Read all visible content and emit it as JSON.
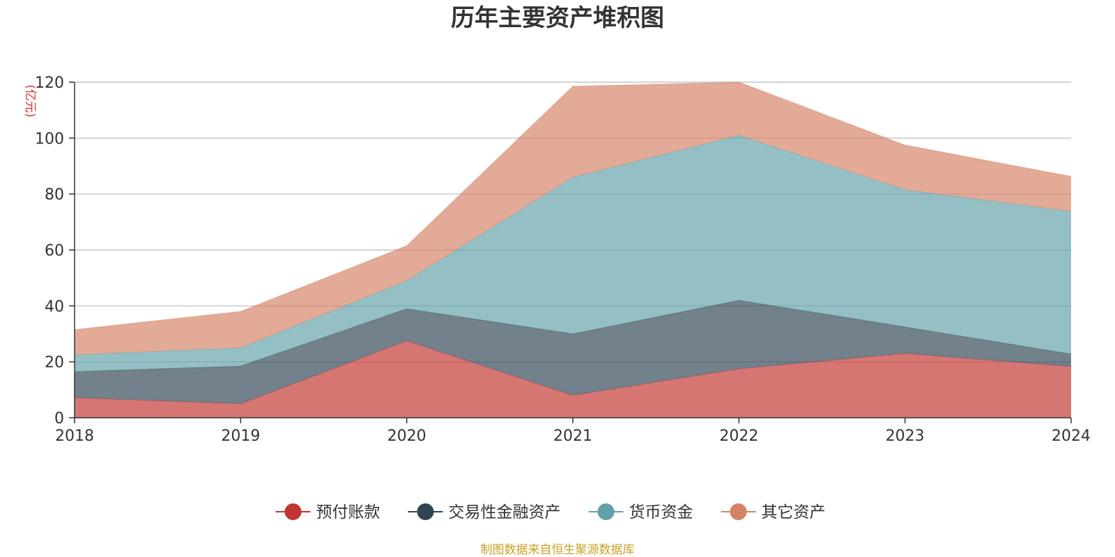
{
  "chart_data": {
    "type": "area",
    "stacked": true,
    "title": "历年主要资产堆积图",
    "unit_label": "(亿元)",
    "categories": [
      "2018",
      "2019",
      "2020",
      "2021",
      "2022",
      "2023",
      "2024"
    ],
    "ylim": [
      0,
      120
    ],
    "yticks": [
      "0",
      "20",
      "40",
      "60",
      "80",
      "100",
      "120"
    ],
    "grid": true,
    "legend_position": "bottom",
    "series": [
      {
        "name": "预付账款",
        "color": "#c23531",
        "values": [
          7.2,
          5.0,
          27.5,
          8.0,
          17.5,
          23.0,
          18.3
        ]
      },
      {
        "name": "交易性金融资产",
        "color": "#2f4554",
        "values": [
          9.3,
          13.5,
          11.5,
          22.0,
          24.5,
          9.5,
          4.5
        ]
      },
      {
        "name": "货币资金",
        "color": "#61a0a8",
        "values": [
          6.0,
          6.5,
          10.0,
          56.0,
          59.0,
          49.0,
          51.0
        ]
      },
      {
        "name": "其它资产",
        "color": "#d48265",
        "values": [
          9.0,
          13.0,
          12.5,
          32.5,
          19.0,
          16.0,
          12.5
        ]
      }
    ],
    "source": "制图数据来自恒生聚源数据库"
  }
}
